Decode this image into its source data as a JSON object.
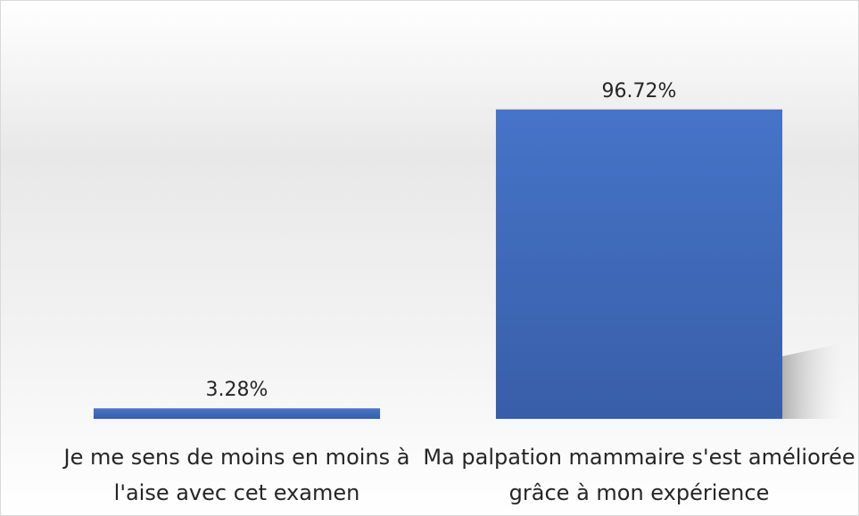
{
  "chart_data": {
    "type": "bar",
    "categories": [
      "Je me sens de moins en moins à l'aise avec cet examen",
      "Ma palpation mammaire s'est améliorée grâce à mon expérience"
    ],
    "values": [
      3.28,
      96.72
    ],
    "value_labels": [
      "3.28%",
      "96.72%"
    ],
    "color": "#4472c4",
    "ylim": [
      0,
      100
    ]
  }
}
